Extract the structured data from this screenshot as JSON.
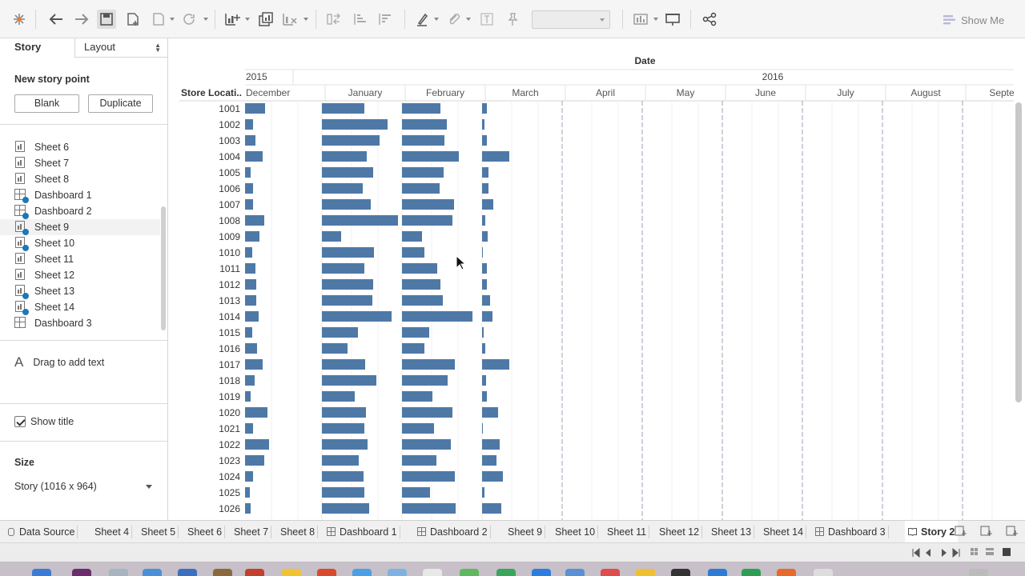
{
  "toolbar": {
    "show_me_label": "Show Me",
    "icons": [
      "tableau-logo-icon",
      "undo-icon",
      "redo-icon",
      "save-icon",
      "new-datasource-icon",
      "pause-updates-icon",
      "refresh-icon",
      "new-worksheet-icon",
      "duplicate-sheet-icon",
      "clear-sheet-icon",
      "swap-icon",
      "sort-ascending-icon",
      "sort-descending-icon",
      "highlight-icon",
      "group-icon",
      "labels-icon",
      "fix-axes-icon",
      "fit-combo",
      "show-cards-icon",
      "presentation-icon",
      "share-icon"
    ]
  },
  "panel": {
    "tab_story": "Story",
    "tab_layout": "Layout",
    "new_story_point": "New story point",
    "blank_button": "Blank",
    "duplicate_button": "Duplicate",
    "sheets": [
      {
        "label": "Sheet 6",
        "kind": "sheet",
        "used": false
      },
      {
        "label": "Sheet 7",
        "kind": "sheet",
        "used": false
      },
      {
        "label": "Sheet 8",
        "kind": "sheet",
        "used": false
      },
      {
        "label": "Dashboard 1",
        "kind": "dashboard",
        "used": true
      },
      {
        "label": "Dashboard 2",
        "kind": "dashboard",
        "used": true
      },
      {
        "label": "Sheet 9",
        "kind": "sheet",
        "used": true
      },
      {
        "label": "Sheet 10",
        "kind": "sheet",
        "used": true
      },
      {
        "label": "Sheet 11",
        "kind": "sheet",
        "used": false
      },
      {
        "label": "Sheet 12",
        "kind": "sheet",
        "used": false
      },
      {
        "label": "Sheet 13",
        "kind": "sheet",
        "used": true
      },
      {
        "label": "Sheet 14",
        "kind": "sheet",
        "used": true
      },
      {
        "label": "Dashboard 3",
        "kind": "dashboard",
        "used": false
      }
    ],
    "drag_to_add_text": "Drag to add text",
    "show_title_label": "Show title",
    "show_title_checked": true,
    "size_heading": "Size",
    "size_value": "Story (1016 x 964)"
  },
  "chart_data": {
    "type": "bar",
    "title": "",
    "column_header": "Date",
    "row_header": "Store Locati..",
    "years": [
      "2015",
      "2016"
    ],
    "months": [
      "December",
      "January",
      "February",
      "March",
      "April",
      "May",
      "June",
      "July",
      "August",
      "Septem"
    ],
    "categories": [
      "1001",
      "1002",
      "1003",
      "1004",
      "1005",
      "1006",
      "1007",
      "1008",
      "1009",
      "1010",
      "1011",
      "1012",
      "1013",
      "1014",
      "1015",
      "1016",
      "1017",
      "1018",
      "1019",
      "1020",
      "1021",
      "1022",
      "1023",
      "1024",
      "1025",
      "1026"
    ],
    "bar_color": "#4e79a7",
    "series": [
      {
        "month": "December",
        "values": [
          25,
          10,
          13,
          22,
          7,
          10,
          10,
          24,
          18,
          9,
          13,
          14,
          14,
          17,
          9,
          15,
          22,
          12,
          7,
          28,
          10,
          30,
          24,
          10,
          6,
          7
        ]
      },
      {
        "month": "January",
        "values": [
          53,
          82,
          72,
          56,
          64,
          51,
          61,
          95,
          24,
          65,
          53,
          64,
          63,
          87,
          45,
          32,
          54,
          68,
          41,
          55,
          53,
          57,
          46,
          52,
          53,
          59
        ]
      },
      {
        "month": "February",
        "values": [
          48,
          56,
          53,
          71,
          52,
          47,
          65,
          63,
          25,
          28,
          44,
          48,
          51,
          88,
          34,
          28,
          66,
          57,
          38,
          63,
          40,
          61,
          43,
          66,
          35,
          67
        ]
      },
      {
        "month": "March",
        "values": [
          6,
          3,
          6,
          34,
          8,
          8,
          14,
          4,
          7,
          1,
          6,
          6,
          10,
          13,
          2,
          4,
          34,
          5,
          6,
          20,
          1,
          22,
          18,
          26,
          3,
          24
        ]
      },
      {
        "month": "April",
        "values": [
          0,
          0,
          0,
          0,
          0,
          0,
          0,
          0,
          0,
          0,
          0,
          0,
          0,
          0,
          0,
          0,
          0,
          0,
          0,
          0,
          0,
          0,
          0,
          0,
          0,
          0
        ]
      },
      {
        "month": "May",
        "values": [
          0,
          0,
          0,
          0,
          0,
          0,
          0,
          0,
          0,
          0,
          0,
          0,
          0,
          0,
          0,
          0,
          0,
          0,
          0,
          0,
          0,
          0,
          0,
          0,
          0,
          0
        ]
      },
      {
        "month": "June",
        "values": [
          0,
          0,
          0,
          0,
          0,
          0,
          0,
          0,
          0,
          0,
          0,
          0,
          0,
          0,
          0,
          0,
          0,
          0,
          0,
          0,
          0,
          0,
          0,
          0,
          0,
          0
        ]
      },
      {
        "month": "July",
        "values": [
          0,
          0,
          0,
          0,
          0,
          0,
          0,
          0,
          0,
          0,
          0,
          0,
          0,
          0,
          0,
          0,
          0,
          0,
          0,
          0,
          0,
          0,
          0,
          0,
          0,
          0
        ]
      },
      {
        "month": "August",
        "values": [
          0,
          0,
          0,
          0,
          0,
          0,
          0,
          0,
          0,
          0,
          0,
          0,
          0,
          0,
          0,
          0,
          0,
          0,
          0,
          0,
          0,
          0,
          0,
          0,
          0,
          0
        ]
      },
      {
        "month": "Septem",
        "values": [
          0,
          0,
          0,
          0,
          0,
          0,
          0,
          0,
          0,
          0,
          0,
          0,
          0,
          0,
          0,
          0,
          0,
          0,
          0,
          0,
          0,
          0,
          0,
          0,
          0,
          0
        ]
      }
    ]
  },
  "bottom_tabs": [
    {
      "label": "Data Source",
      "icon": "datasource-icon",
      "active": false
    },
    {
      "label": "Sheet 4",
      "icon": "",
      "active": false
    },
    {
      "label": "Sheet 5",
      "icon": "",
      "active": false
    },
    {
      "label": "Sheet 6",
      "icon": "",
      "active": false
    },
    {
      "label": "Sheet 7",
      "icon": "",
      "active": false
    },
    {
      "label": "Sheet 8",
      "icon": "",
      "active": false
    },
    {
      "label": "Dashboard 1",
      "icon": "dashboard-icon",
      "active": false
    },
    {
      "label": "Dashboard 2",
      "icon": "dashboard-icon",
      "active": false
    },
    {
      "label": "Sheet 9",
      "icon": "",
      "active": false
    },
    {
      "label": "Sheet 10",
      "icon": "",
      "active": false
    },
    {
      "label": "Sheet 11",
      "icon": "",
      "active": false
    },
    {
      "label": "Sheet 12",
      "icon": "",
      "active": false
    },
    {
      "label": "Sheet 13",
      "icon": "",
      "active": false
    },
    {
      "label": "Sheet 14",
      "icon": "",
      "active": false
    },
    {
      "label": "Dashboard 3",
      "icon": "dashboard-icon",
      "active": false
    },
    {
      "label": "Story 2",
      "icon": "story-icon",
      "active": true
    }
  ]
}
